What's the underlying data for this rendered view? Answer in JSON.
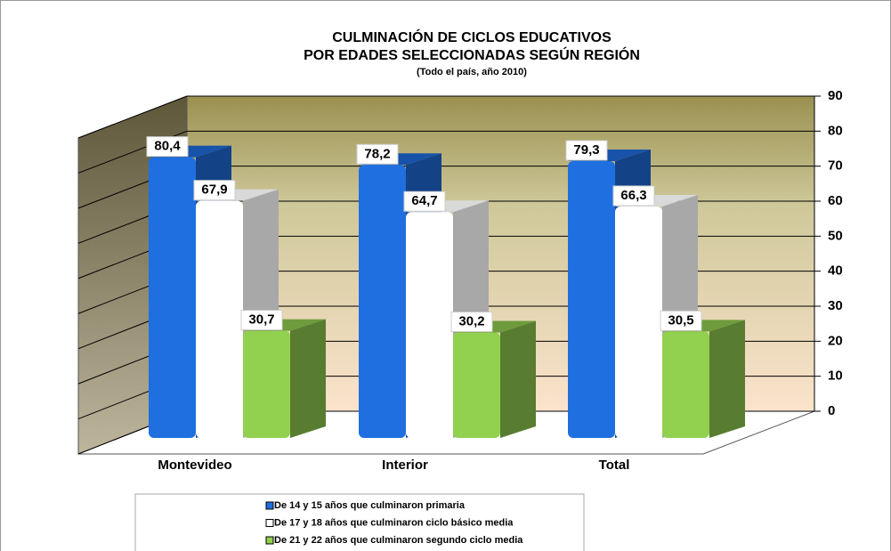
{
  "chart_data": {
    "type": "bar",
    "title": [
      "CULMINACIÓN DE CICLOS EDUCATIVOS",
      "POR EDADES SELECCIONADAS SEGÚN REGIÓN"
    ],
    "subtitle": "(Todo el país, año 2010)",
    "categories": [
      "Montevideo",
      "Interior",
      "Total"
    ],
    "series": [
      {
        "name": "De 14 y 15 años que culminaron primaria",
        "color": "#1f6fe0",
        "values": [
          80.4,
          78.2,
          79.3
        ],
        "value_labels": [
          "80,4",
          "78,2",
          "79,3"
        ]
      },
      {
        "name": "De 17 y 18 años que culminaron ciclo básico media",
        "color": "#ffffff",
        "values": [
          67.9,
          64.7,
          66.3
        ],
        "value_labels": [
          "67,9",
          "64,7",
          "66,3"
        ]
      },
      {
        "name": "De 21 y 22 años que culminaron segundo ciclo media",
        "color": "#92d050",
        "values": [
          30.7,
          30.2,
          30.5
        ],
        "value_labels": [
          "30,7",
          "30,2",
          "30,5"
        ]
      }
    ],
    "ylim": [
      0,
      90
    ],
    "yticks": [
      0,
      10,
      20,
      30,
      40,
      50,
      60,
      70,
      80,
      90
    ],
    "grid": true,
    "legend": "bottom"
  }
}
